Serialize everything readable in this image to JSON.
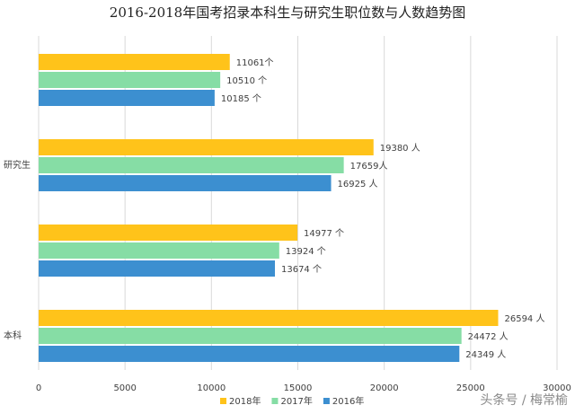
{
  "chart_data": {
    "type": "hbar",
    "title": "2016-2018年国考招录本科生与研究生职位数与人数趋势图",
    "categories": [
      null,
      "研究生",
      null,
      "本科"
    ],
    "series": [
      {
        "name": "2018年",
        "color": "#FFC31A",
        "values": [
          11061,
          19380,
          14977,
          26594
        ],
        "value_labels": [
          "11061个",
          "19380 人",
          "14977 个",
          "26594 人"
        ]
      },
      {
        "name": "2017年",
        "color": "#86DDA5",
        "values": [
          10510,
          17659,
          13924,
          24472
        ],
        "value_labels": [
          "10510 个",
          "17659人",
          "13924 个",
          "24472 人"
        ]
      },
      {
        "name": "2016年",
        "color": "#3C8FD0",
        "values": [
          10185,
          16925,
          13674,
          24349
        ],
        "value_labels": [
          "10185 个",
          "16925 人",
          "13674 个",
          "24349 人"
        ]
      }
    ],
    "xlim": [
      0,
      30000
    ],
    "xticks": [
      0,
      5000,
      10000,
      15000,
      20000,
      25000,
      30000
    ],
    "grid": true,
    "legend": "bottom",
    "watermark": "头条号 / 梅常榆"
  }
}
